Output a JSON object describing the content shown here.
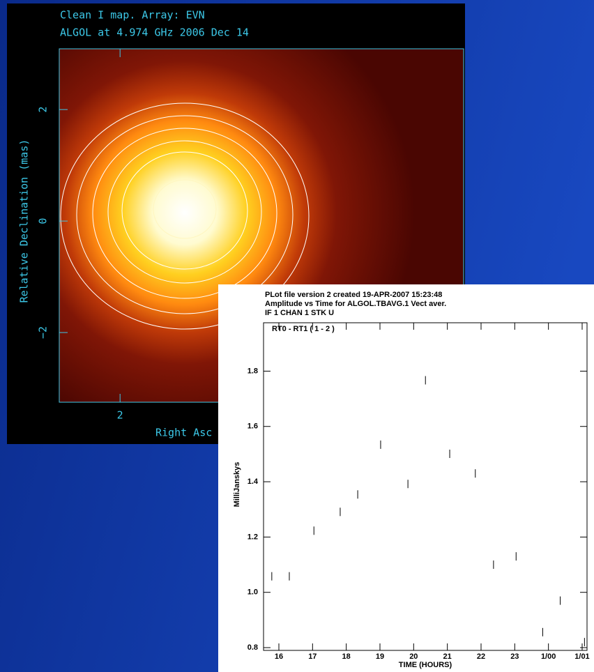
{
  "chart_data": [
    {
      "type": "image",
      "title": "Clean I map.  Array:  EVN",
      "subtitle": "ALGOL at 4.974 GHz 2006 Dec 14",
      "xlabel": "Right Asc",
      "ylabel": "Relative Declination  (mas)",
      "xlim": [
        3.09,
        -4.16
      ],
      "ylim": [
        -3.25,
        3.09
      ],
      "xticks": [
        2
      ],
      "yticks": [
        {
          "value": -2,
          "label": "−2"
        },
        0,
        2
      ]
    },
    {
      "type": "scatter",
      "title": "PLot file version 2  created 19-APR-2007 15:23:48",
      "subtitle": "Amplitude vs Time  for  ALGOL.TBAVG.1  Vect aver.",
      "note": "IF 1   CHAN 1   STK U",
      "annotation": "RT0 - RT1 ( 1 - 2 )",
      "xlabel": "TIME (HOURS)",
      "ylabel": "MilliJanskys",
      "xlim": [
        15.545,
        25.145
      ],
      "ylim": [
        0.79,
        1.975
      ],
      "xticks": [
        16,
        17,
        18,
        19,
        20,
        21,
        22,
        23,
        {
          "value": 24,
          "label": "1/00"
        },
        {
          "value": 25,
          "label": "1/01"
        }
      ],
      "yticks": [
        {
          "value": 0.8,
          "label": "0.8"
        },
        {
          "value": 1.0,
          "label": "1.0"
        },
        {
          "value": 1.2,
          "label": "1.2"
        },
        {
          "value": 1.4,
          "label": "1.4"
        },
        {
          "value": 1.6,
          "label": "1.6"
        },
        {
          "value": 1.8,
          "label": "1.8"
        }
      ],
      "color": "#000000",
      "x": [
        15.79,
        16.31,
        17.04,
        17.82,
        18.34,
        19.02,
        19.83,
        20.35,
        21.07,
        21.83,
        22.37,
        23.04,
        23.83,
        24.35,
        25.07
      ],
      "values": [
        1.058,
        1.058,
        1.223,
        1.291,
        1.354,
        1.534,
        1.392,
        1.767,
        1.501,
        1.43,
        1.1,
        1.13,
        0.856,
        0.97,
        0.82
      ]
    }
  ]
}
